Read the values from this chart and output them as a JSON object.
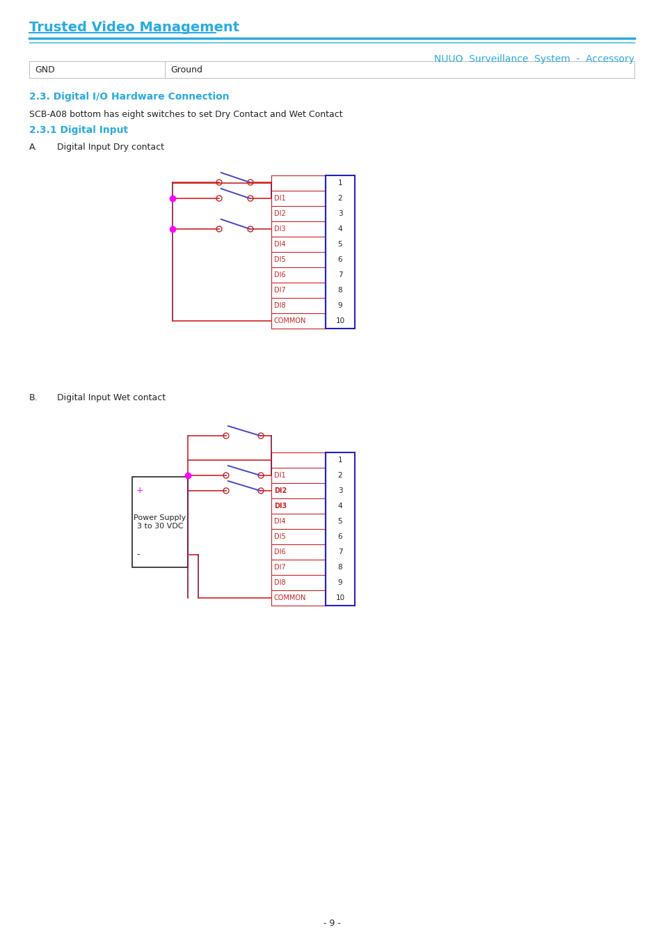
{
  "page_bg": "#ffffff",
  "header_title": "Trusted Video Management",
  "header_title_color": "#29abe2",
  "header_line_color": "#29abe2",
  "header_right_text": "NUUO  Surveillance  System  -  Accessory",
  "header_right_color": "#29abe2",
  "table_col1": "GND",
  "table_col2": "Ground",
  "table_border_color": "#bbbbbb",
  "section_title": "2.3. Digital I/O Hardware Connection",
  "section_title_color": "#29abe2",
  "body_text1": "SCB-A08 bottom has eight switches to set Dry Contact and Wet Contact",
  "sub_section_title": "2.3.1 Digital Input",
  "sub_section_color": "#29abe2",
  "label_A_text": "Digital Input Dry contact",
  "label_B_text": "Digital Input Wet contact",
  "wire_color": "#cc2222",
  "wire_dark": "#881144",
  "switch_color": "#4444cc",
  "connector_border_color": "#2222bb",
  "connector_label_color": "#cc2222",
  "connector_number_color": "#222222",
  "dot_color": "#ff00ff",
  "power_supply_text1": "Power Supply",
  "power_supply_text2": "3 to 30 VDC",
  "connector_labels": [
    "DI1",
    "DI2",
    "DI3",
    "DI4",
    "DI5",
    "DI6",
    "DI7",
    "DI8",
    "COMMON"
  ],
  "connector_numbers": [
    "1",
    "2",
    "3",
    "4",
    "5",
    "6",
    "7",
    "8",
    "9",
    "10"
  ],
  "footer_text": "- 9 -",
  "text_color": "#222222",
  "bold_labels_B": [
    1,
    2
  ]
}
